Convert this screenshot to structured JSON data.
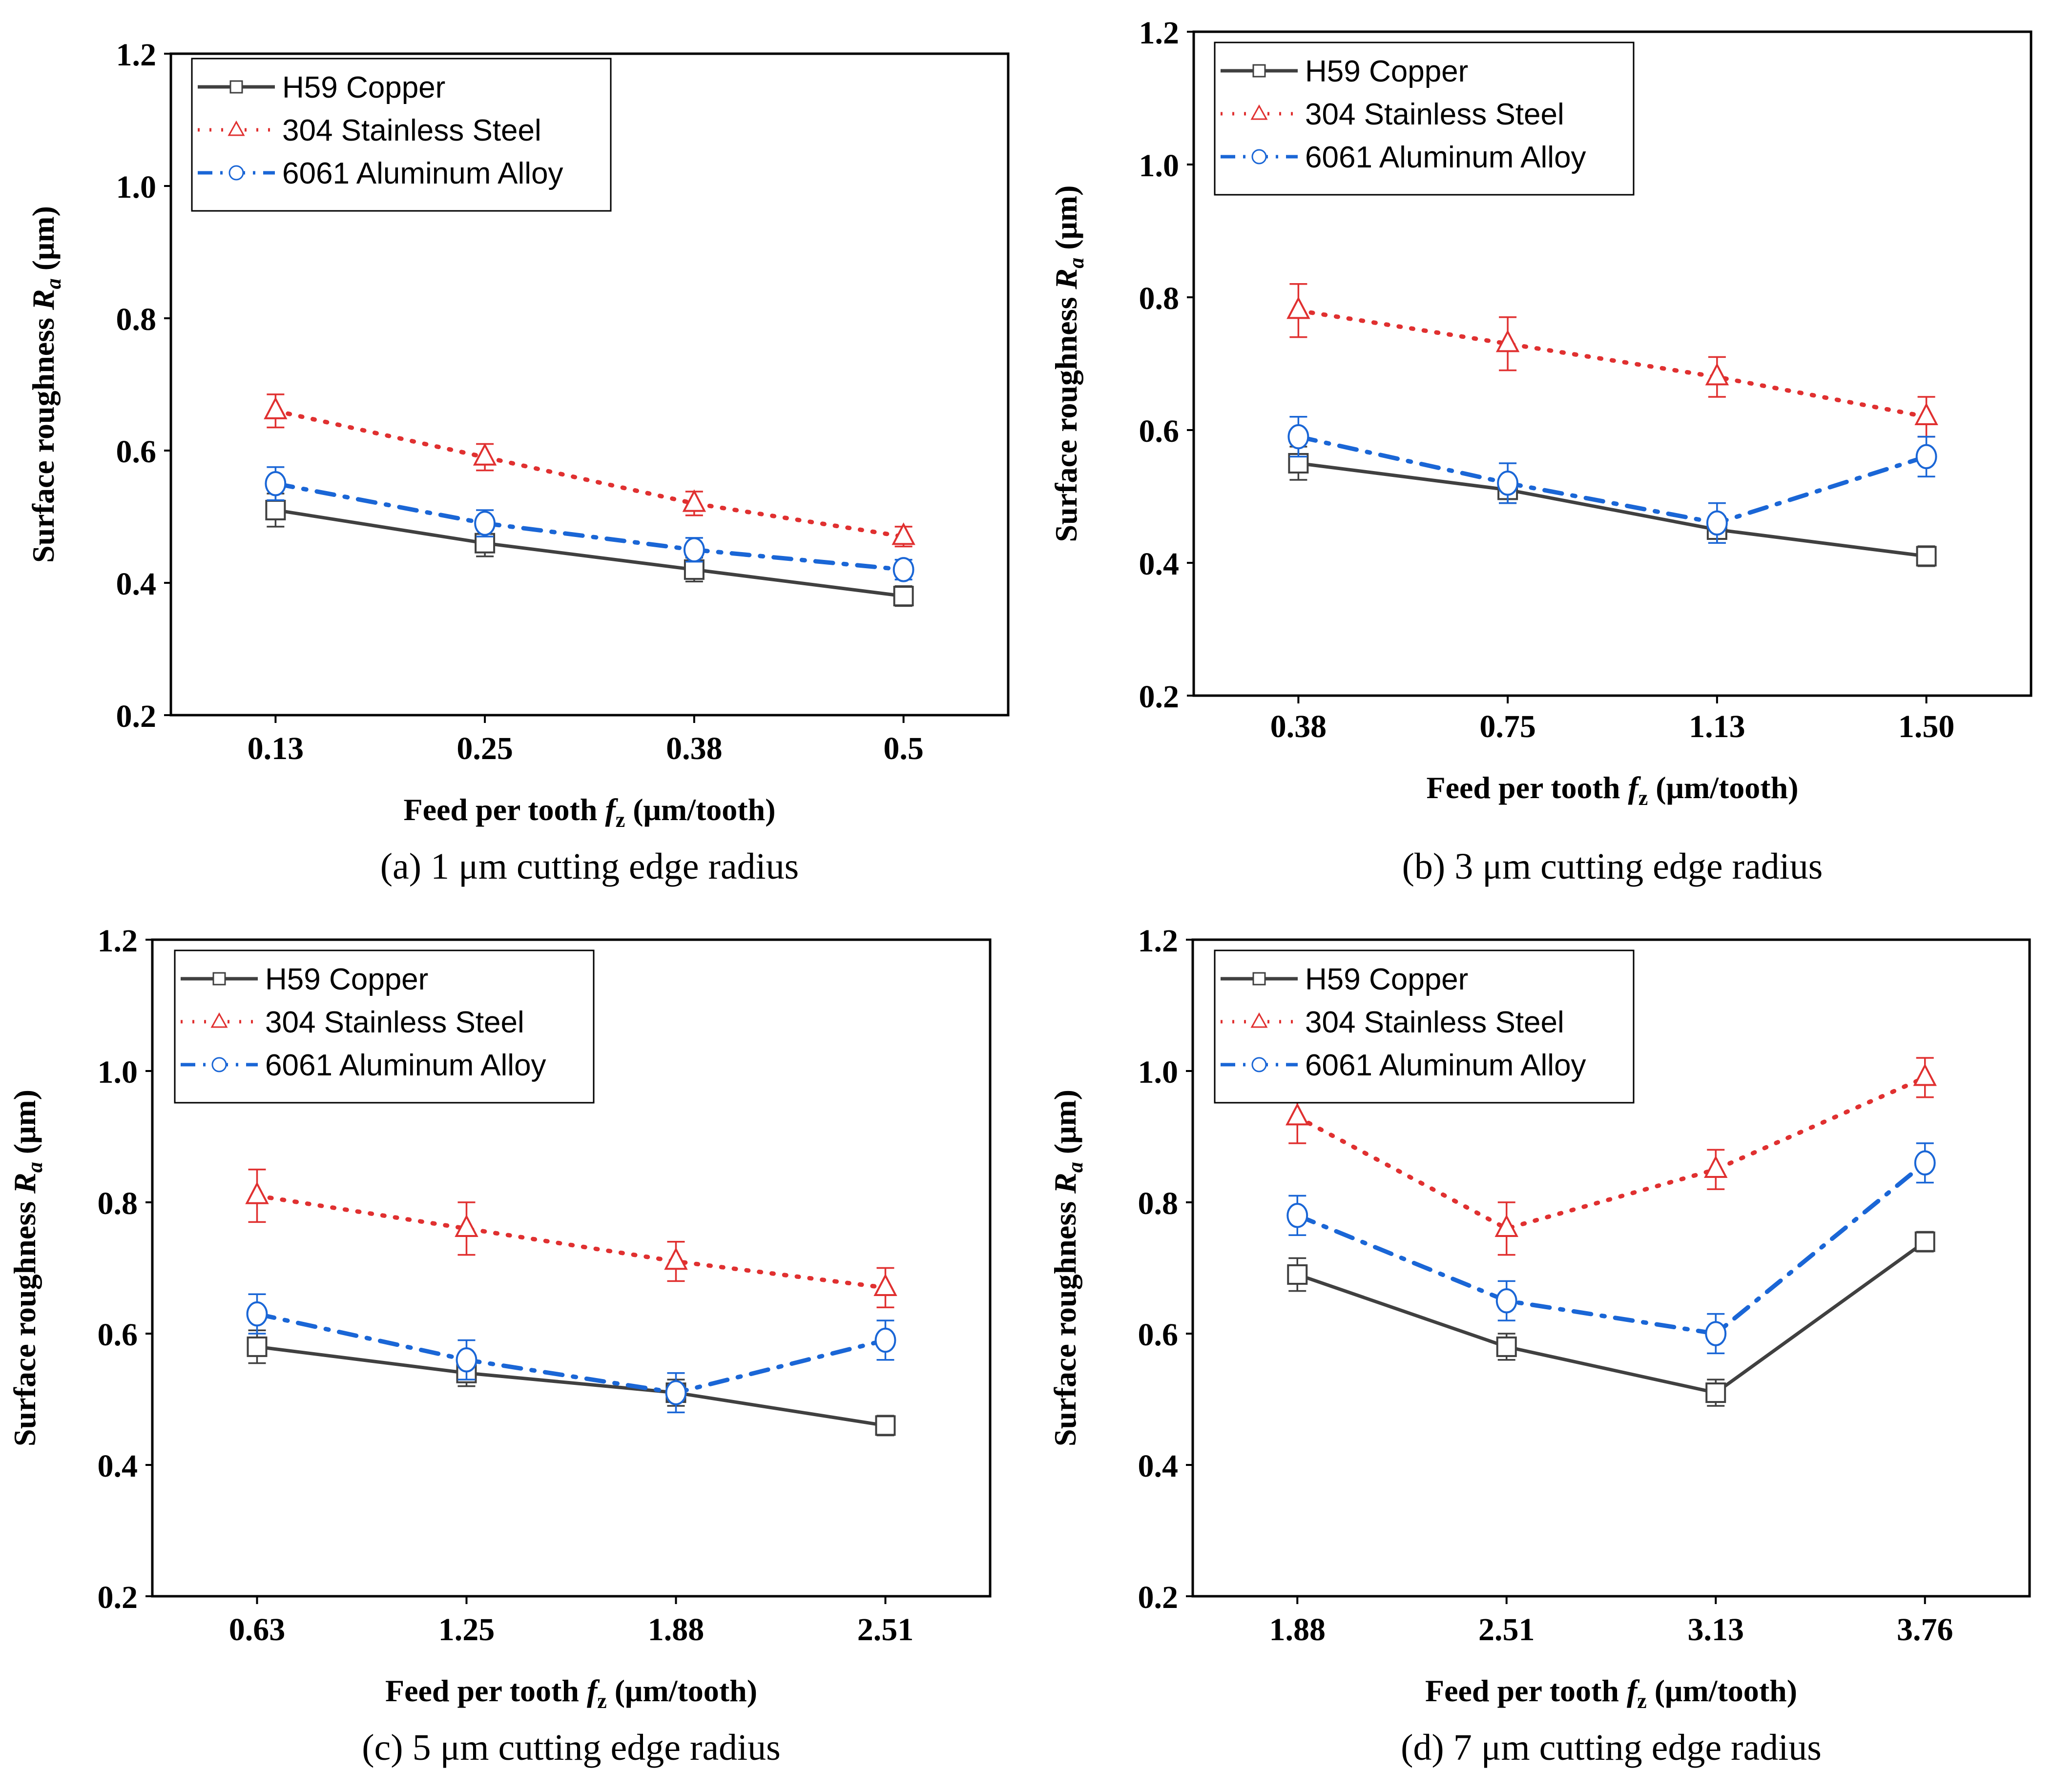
{
  "chart_data": [
    {
      "type": "line",
      "panel": "a",
      "caption": "(a) 1 μm cutting edge radius",
      "xlabel_prefix": "Feed per tooth ",
      "xlabel_var": "f",
      "xlabel_sub": "z",
      "xlabel_suffix": " (μm/tooth)",
      "ylabel_prefix": "Surface roughness ",
      "ylabel_var": "R",
      "ylabel_sub": "a",
      "ylabel_suffix": " (μm)",
      "categories": [
        "0.13",
        "0.25",
        "0.38",
        "0.5"
      ],
      "ylim": [
        0.2,
        1.2
      ],
      "yticks": [
        "0.2",
        "0.4",
        "0.6",
        "0.8",
        "1.0",
        "1.2"
      ],
      "grid": false,
      "legend_position": "top-left",
      "series": [
        {
          "name": "H59 Copper",
          "marker": "square",
          "line": "solid",
          "color": "#404040",
          "values": [
            0.51,
            0.46,
            0.42,
            0.38
          ],
          "errors": [
            0.025,
            0.02,
            0.018,
            0.015
          ]
        },
        {
          "name": "304 Stainless Steel",
          "marker": "triangle",
          "line": "dotted",
          "color": "#e03030",
          "values": [
            0.66,
            0.59,
            0.52,
            0.47
          ],
          "errors": [
            0.025,
            0.02,
            0.018,
            0.015
          ]
        },
        {
          "name": "6061 Aluminum Alloy",
          "marker": "circle",
          "line": "dashdot",
          "color": "#1a66d6",
          "values": [
            0.55,
            0.49,
            0.45,
            0.42
          ],
          "errors": [
            0.025,
            0.02,
            0.018,
            0.015
          ]
        }
      ]
    },
    {
      "type": "line",
      "panel": "b",
      "caption": "(b) 3 μm cutting edge radius",
      "xlabel_prefix": "Feed per tooth ",
      "xlabel_var": "f",
      "xlabel_sub": "z",
      "xlabel_suffix": " (μm/tooth)",
      "ylabel_prefix": "Surface roughness ",
      "ylabel_var": "R",
      "ylabel_sub": "a",
      "ylabel_suffix": " (μm)",
      "categories": [
        "0.38",
        "0.75",
        "1.13",
        "1.50"
      ],
      "ylim": [
        0.2,
        1.2
      ],
      "yticks": [
        "0.2",
        "0.4",
        "0.6",
        "0.8",
        "1.0",
        "1.2"
      ],
      "grid": false,
      "legend_position": "top-left",
      "series": [
        {
          "name": "H59 Copper",
          "marker": "square",
          "line": "solid",
          "color": "#404040",
          "values": [
            0.55,
            0.51,
            0.45,
            0.41
          ],
          "errors": [
            0.025,
            0.02,
            0.02,
            0.015
          ]
        },
        {
          "name": "304 Stainless Steel",
          "marker": "triangle",
          "line": "dotted",
          "color": "#e03030",
          "values": [
            0.78,
            0.73,
            0.68,
            0.62
          ],
          "errors": [
            0.04,
            0.04,
            0.03,
            0.03
          ]
        },
        {
          "name": "6061 Aluminum Alloy",
          "marker": "circle",
          "line": "dashdot",
          "color": "#1a66d6",
          "values": [
            0.59,
            0.52,
            0.46,
            0.56
          ],
          "errors": [
            0.03,
            0.03,
            0.03,
            0.03
          ]
        }
      ]
    },
    {
      "type": "line",
      "panel": "c",
      "caption": "(c) 5 μm cutting edge radius",
      "xlabel_prefix": "Feed per tooth ",
      "xlabel_var": "f",
      "xlabel_sub": "z",
      "xlabel_suffix": " (μm/tooth)",
      "ylabel_prefix": "Surface roughness ",
      "ylabel_var": "R",
      "ylabel_sub": "a",
      "ylabel_suffix": " (μm)",
      "categories": [
        "0.63",
        "1.25",
        "1.88",
        "2.51"
      ],
      "ylim": [
        0.2,
        1.2
      ],
      "yticks": [
        "0.2",
        "0.4",
        "0.6",
        "0.8",
        "1.0",
        "1.2"
      ],
      "grid": false,
      "legend_position": "top-left",
      "series": [
        {
          "name": "H59 Copper",
          "marker": "square",
          "line": "solid",
          "color": "#404040",
          "values": [
            0.58,
            0.54,
            0.51,
            0.46
          ],
          "errors": [
            0.025,
            0.02,
            0.02,
            0.015
          ]
        },
        {
          "name": "304 Stainless Steel",
          "marker": "triangle",
          "line": "dotted",
          "color": "#e03030",
          "values": [
            0.81,
            0.76,
            0.71,
            0.67
          ],
          "errors": [
            0.04,
            0.04,
            0.03,
            0.03
          ]
        },
        {
          "name": "6061 Aluminum Alloy",
          "marker": "circle",
          "line": "dashdot",
          "color": "#1a66d6",
          "values": [
            0.63,
            0.56,
            0.51,
            0.59
          ],
          "errors": [
            0.03,
            0.03,
            0.03,
            0.03
          ]
        }
      ]
    },
    {
      "type": "line",
      "panel": "d",
      "caption": "(d) 7 μm cutting edge radius",
      "xlabel_prefix": "Feed per tooth ",
      "xlabel_var": "f",
      "xlabel_sub": "z",
      "xlabel_suffix": " (μm/tooth)",
      "ylabel_prefix": "Surface roughness ",
      "ylabel_var": "R",
      "ylabel_sub": "a",
      "ylabel_suffix": " (μm)",
      "categories": [
        "1.88",
        "2.51",
        "3.13",
        "3.76"
      ],
      "ylim": [
        0.2,
        1.2
      ],
      "yticks": [
        "0.2",
        "0.4",
        "0.6",
        "0.8",
        "1.0",
        "1.2"
      ],
      "grid": false,
      "legend_position": "top-left",
      "series": [
        {
          "name": "H59 Copper",
          "marker": "square",
          "line": "solid",
          "color": "#404040",
          "values": [
            0.69,
            0.58,
            0.51,
            0.74
          ],
          "errors": [
            0.025,
            0.02,
            0.02,
            0.015
          ]
        },
        {
          "name": "304 Stainless Steel",
          "marker": "triangle",
          "line": "dotted",
          "color": "#e03030",
          "values": [
            0.93,
            0.76,
            0.85,
            0.99
          ],
          "errors": [
            0.04,
            0.04,
            0.03,
            0.03
          ]
        },
        {
          "name": "6061 Aluminum Alloy",
          "marker": "circle",
          "line": "dashdot",
          "color": "#1a66d6",
          "values": [
            0.78,
            0.65,
            0.6,
            0.86
          ],
          "errors": [
            0.03,
            0.03,
            0.03,
            0.03
          ]
        }
      ]
    }
  ]
}
